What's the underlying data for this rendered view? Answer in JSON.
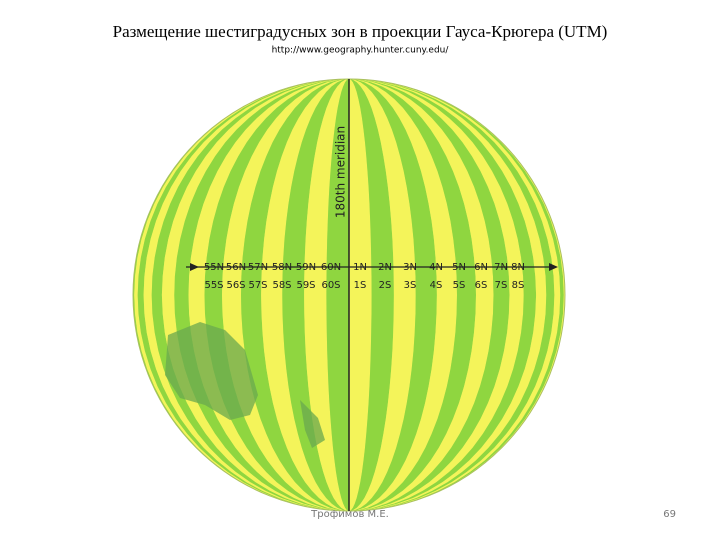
{
  "header": {
    "title": "Размещение шестиградусных зон в проекции Гауса-Крюгера (UTM)",
    "source": "http://www.geography.hunter.cuny.edu/"
  },
  "globe": {
    "meridian_label": "180th meridian",
    "north_zones": [
      "55N",
      "56N",
      "57N",
      "58N",
      "59N",
      "60N",
      "1N",
      "2N",
      "3N",
      "4N",
      "5N",
      "6N",
      "7N",
      "8N"
    ],
    "south_zones": [
      "55S",
      "56S",
      "57S",
      "58S",
      "59S",
      "60S",
      "1S",
      "2S",
      "3S",
      "4S",
      "5S",
      "6S",
      "7S",
      "8S"
    ]
  },
  "footer": {
    "author": "Трофимов М.Е.",
    "page": "69"
  }
}
